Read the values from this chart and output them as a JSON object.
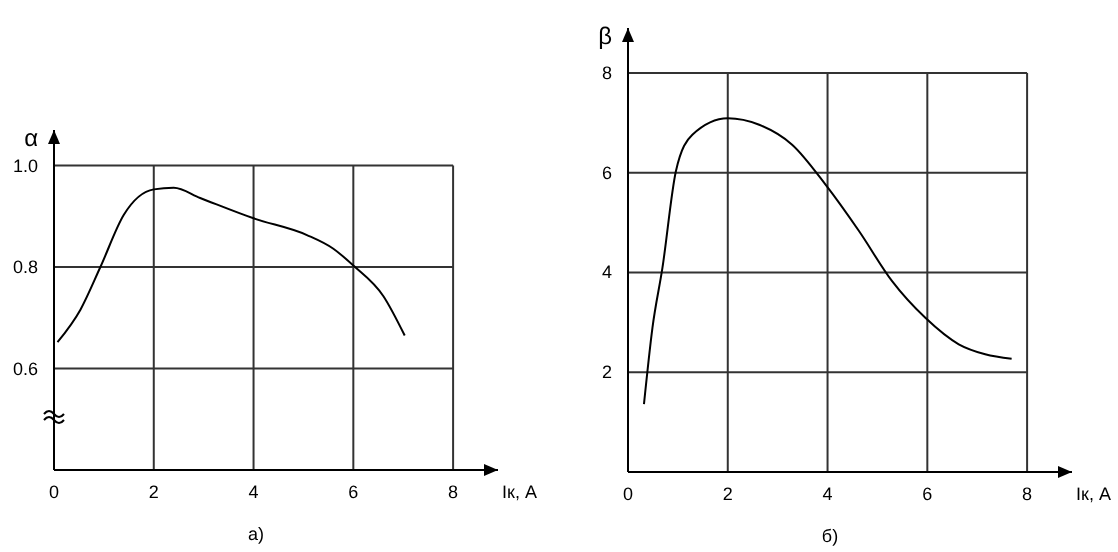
{
  "chart_data": [
    {
      "type": "line",
      "ylabel": "α",
      "xlabel": "Iк, А",
      "annotations": [
        "а)"
      ],
      "xlim": [
        0,
        8.9
      ],
      "ylim": [
        0.4,
        1.07
      ],
      "xticks": [
        0,
        2,
        4,
        6,
        8
      ],
      "yticks": [
        {
          "value": 0.6,
          "label": "0.6"
        },
        {
          "value": 0.8,
          "label": "0.8"
        },
        {
          "value": 1,
          "label": "1.0"
        }
      ],
      "grid": true,
      "marker": "none",
      "line_style": "solid",
      "series": [
        {
          "color": "#000000",
          "x": [
            0.07,
            0.53,
            0.93,
            1.4,
            2.0,
            2.4,
            2.93,
            4.0,
            5.07,
            5.6,
            6.0,
            6.6,
            7.03
          ],
          "values": [
            0.652,
            0.716,
            0.8,
            0.903,
            0.953,
            0.956,
            0.936,
            0.896,
            0.863,
            0.836,
            0.803,
            0.743,
            0.665
          ]
        }
      ]
    },
    {
      "type": "line",
      "ylabel": "β",
      "xlabel": "Iк, А",
      "annotations": [
        "б)"
      ],
      "xlim": [
        0,
        8.9
      ],
      "ylim": [
        0,
        8.9
      ],
      "xticks": [
        0,
        2,
        4,
        6,
        8
      ],
      "yticks": [
        2,
        4,
        6,
        8
      ],
      "grid": true,
      "marker": "none",
      "line_style": "solid",
      "series": [
        {
          "color": "#000000",
          "x": [
            0.32,
            0.49,
            0.69,
            0.96,
            1.29,
            2.0,
            2.63,
            3.29,
            3.96,
            4.63,
            5.29,
            5.96,
            6.63,
            7.16,
            7.69
          ],
          "values": [
            1.36,
            2.89,
            4.09,
            6.03,
            6.76,
            7.09,
            6.96,
            6.56,
            5.76,
            4.83,
            3.83,
            3.09,
            2.56,
            2.36,
            2.27
          ]
        }
      ]
    }
  ]
}
